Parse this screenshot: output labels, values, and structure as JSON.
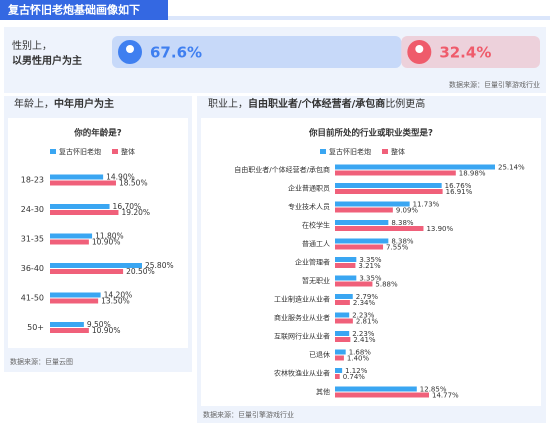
{
  "title": "复古怀旧老炮基础画像如下",
  "gender": {
    "label_lines": [
      "性别上，",
      "以男性用户为主"
    ],
    "values": [
      67.6,
      32.4
    ],
    "value_labels": [
      "67.6%",
      "32.4%"
    ],
    "colors": [
      "#3f7ff0",
      "#ef5b6b"
    ],
    "source": "数据来源：巨量引擎游戏行业"
  },
  "chart_data": [
    {
      "type": "bar",
      "orientation": "horizontal",
      "heading_parts": [
        "年龄上，",
        "中年用户为主"
      ],
      "title": "你的年龄是?",
      "categories": [
        "18-23",
        "24-30",
        "31-35",
        "36-40",
        "41-50",
        "50+"
      ],
      "series": [
        {
          "name": "复古怀旧老炮",
          "color": "#3aa6f2",
          "values": [
            14.9,
            16.7,
            11.8,
            25.8,
            14.2,
            9.5
          ],
          "value_labels": [
            "14.90%",
            "16.70%",
            "11.80%",
            "25.80%",
            "14.20%",
            "9.50%"
          ]
        },
        {
          "name": "整体",
          "color": "#f0607a",
          "values": [
            18.5,
            19.2,
            10.9,
            20.5,
            13.5,
            10.9
          ],
          "value_labels": [
            "18.50%",
            "19.20%",
            "10.90%",
            "20.50%",
            "13.50%",
            "10.90%"
          ]
        }
      ],
      "source": "数据来源：巨量云图"
    },
    {
      "type": "bar",
      "orientation": "horizontal",
      "heading_parts": [
        "职业上，",
        "自由职业者/个体经营者/承包商",
        "比例更高"
      ],
      "title": "你目前所处的行业或职业类型是?",
      "categories": [
        "自由职业者/个体经营者/承包商",
        "企业普通职员",
        "专业技术人员",
        "在校学生",
        "普通工人",
        "企业管理者",
        "暂无职业",
        "工业制造业从业者",
        "商业服务业从业者",
        "互联网行业从业者",
        "已退休",
        "农林牧渔业从业者",
        "其他"
      ],
      "series": [
        {
          "name": "复古怀旧老炮",
          "color": "#3aa6f2",
          "values": [
            25.14,
            16.76,
            11.73,
            8.38,
            8.38,
            3.35,
            3.35,
            2.79,
            2.23,
            2.23,
            1.68,
            1.12,
            12.85
          ],
          "value_labels": [
            "25.14%",
            "16.76%",
            "11.73%",
            "8.38%",
            "8.38%",
            "3.35%",
            "3.35%",
            "2.79%",
            "2.23%",
            "2.23%",
            "1.68%",
            "1.12%",
            "12.85%"
          ]
        },
        {
          "name": "整体",
          "color": "#f0607a",
          "values": [
            18.98,
            16.91,
            9.09,
            13.9,
            7.55,
            3.21,
            5.88,
            2.34,
            2.81,
            2.41,
            1.4,
            0.74,
            14.77
          ],
          "value_labels": [
            "18.98%",
            "16.91%",
            "9.09%",
            "13.90%",
            "7.55%",
            "3.21%",
            "5.88%",
            "2.34%",
            "2.81%",
            "2.41%",
            "1.40%",
            "0.74%",
            "14.77%"
          ]
        }
      ],
      "source": "数据来源：巨量引擎游戏行业"
    }
  ]
}
